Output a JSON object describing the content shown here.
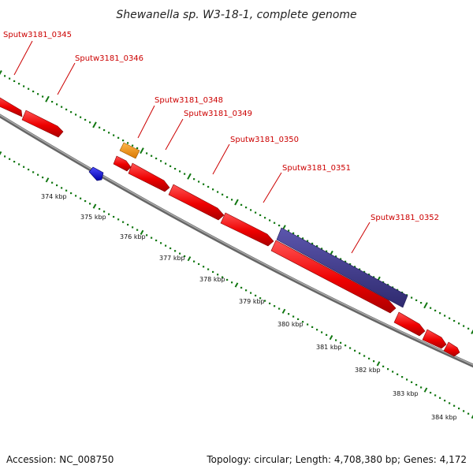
{
  "title": "Shewanella sp. W3-18-1, complete genome",
  "footer": {
    "accession": "Accession: NC_008750",
    "summary": "Topology: circular; Length: 4,708,380 bp; Genes: 4,172"
  },
  "colors": {
    "forward_gene": "#ff0000",
    "reverse_gene": "#0000ff",
    "orange_gene": "#ff9900",
    "purple_feature": "#3f3a8f",
    "backbone": "#888888",
    "dotted_track": "#117711",
    "label_text": "#cc0000"
  },
  "gene_labels": [
    "Sputw3181_0345",
    "Sputw3181_0346",
    "Sputw3181_0348",
    "Sputw3181_0349",
    "Sputw3181_0350",
    "Sputw3181_0351",
    "Sputw3181_0352"
  ],
  "tick_labels": [
    "374 kbp",
    "375 kbp",
    "376 kbp",
    "377 kbp",
    "378 kbp",
    "379 kbp",
    "380 kbp",
    "381 kbp",
    "382 kbp",
    "383 kbp",
    "384 kbp"
  ]
}
